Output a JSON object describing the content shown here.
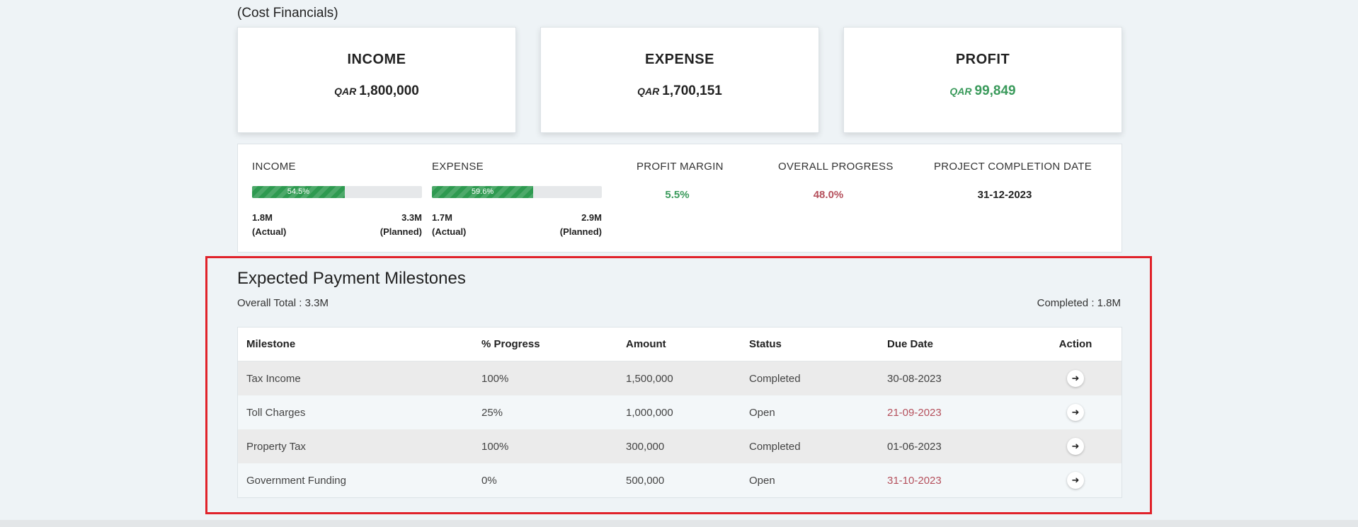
{
  "section_title": "(Cost Financials)",
  "cards": {
    "income": {
      "title": "INCOME",
      "currency": "QAR",
      "value": "1,800,000"
    },
    "expense": {
      "title": "EXPENSE",
      "currency": "QAR",
      "value": "1,700,151"
    },
    "profit": {
      "title": "PROFIT",
      "currency": "QAR",
      "value": "99,849",
      "color": "#3a9a5b"
    }
  },
  "summary": {
    "income": {
      "label": "INCOME",
      "progress_pct": 54.5,
      "progress_text": "54.5%",
      "actual": "1.8M",
      "actual_label": "(Actual)",
      "planned": "3.3M",
      "planned_label": "(Planned)"
    },
    "expense": {
      "label": "EXPENSE",
      "progress_pct": 59.6,
      "progress_text": "59.6%",
      "actual": "1.7M",
      "actual_label": "(Actual)",
      "planned": "2.9M",
      "planned_label": "(Planned)"
    },
    "profit_margin": {
      "label": "PROFIT MARGIN",
      "value": "5.5%",
      "color": "#3a9a5b"
    },
    "overall_progress": {
      "label": "OVERALL PROGRESS",
      "value": "48.0%",
      "color": "#b5505c"
    },
    "completion_date": {
      "label": "PROJECT COMPLETION DATE",
      "value": "31-12-2023"
    }
  },
  "milestones": {
    "title": "Expected Payment Milestones",
    "overall_total": "Overall Total : 3.3M",
    "completed": "Completed : 1.8M",
    "columns": [
      "Milestone",
      "% Progress",
      "Amount",
      "Status",
      "Due Date",
      "Action"
    ],
    "rows": [
      {
        "milestone": "Tax Income",
        "progress": "100%",
        "amount": "1,500,000",
        "status": "Completed",
        "due_date": "30-08-2023",
        "overdue": false
      },
      {
        "milestone": "Toll Charges",
        "progress": "25%",
        "amount": "1,000,000",
        "status": "Open",
        "due_date": "21-09-2023",
        "overdue": true
      },
      {
        "milestone": "Property Tax",
        "progress": "100%",
        "amount": "300,000",
        "status": "Completed",
        "due_date": "01-06-2023",
        "overdue": false
      },
      {
        "milestone": "Government Funding",
        "progress": "0%",
        "amount": "500,000",
        "status": "Open",
        "due_date": "31-10-2023",
        "overdue": true
      }
    ],
    "action_icon": "arrow-right-icon"
  },
  "colors": {
    "accent_green": "#2e9a50",
    "alert_red": "#b5505c",
    "highlight_border": "#e0222a"
  }
}
